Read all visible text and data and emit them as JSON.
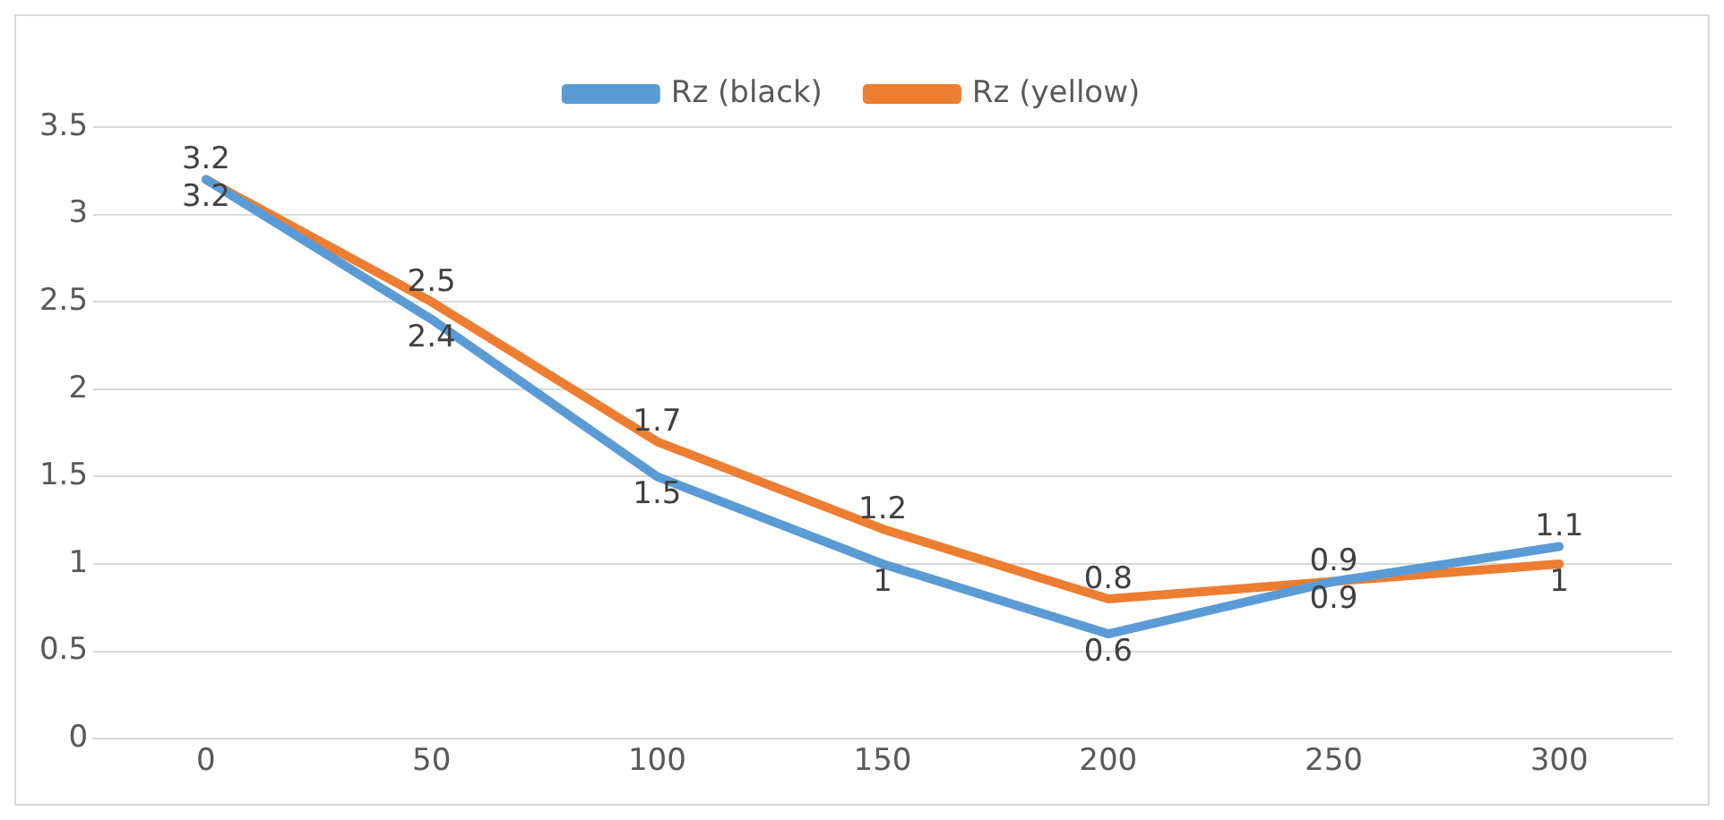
{
  "chart_data": {
    "type": "line",
    "categories": [
      "0",
      "50",
      "100",
      "150",
      "200",
      "250",
      "300"
    ],
    "series": [
      {
        "name": "Rz (black)",
        "color": "#5b9bd5",
        "values": [
          3.2,
          2.4,
          1.5,
          1,
          0.6,
          0.9,
          1.1
        ]
      },
      {
        "name": "Rz (yellow)",
        "color": "#ed7d31",
        "values": [
          3.2,
          2.5,
          1.7,
          1.2,
          0.8,
          0.9,
          1
        ]
      }
    ],
    "ylim": [
      0,
      3.5
    ],
    "yticks": [
      0,
      0.5,
      1,
      1.5,
      2,
      2.5,
      3,
      3.5
    ],
    "grid": "y",
    "legend": "top",
    "marker": "none",
    "line_style": "solid",
    "data_labels": true
  }
}
